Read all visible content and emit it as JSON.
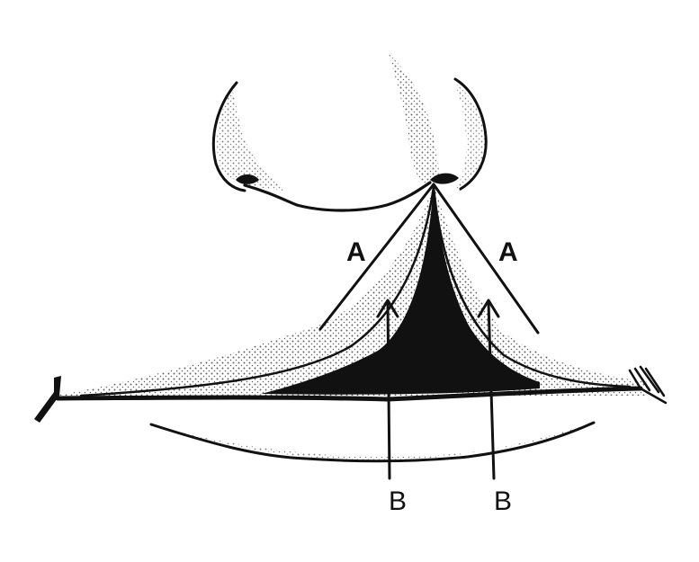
{
  "labels": {
    "a_left": "A",
    "a_right": "A",
    "b_left": "B",
    "b_right": "B"
  },
  "colors": {
    "ink": "#111111",
    "background": "#ffffff",
    "shade": "#bfbfbf"
  }
}
